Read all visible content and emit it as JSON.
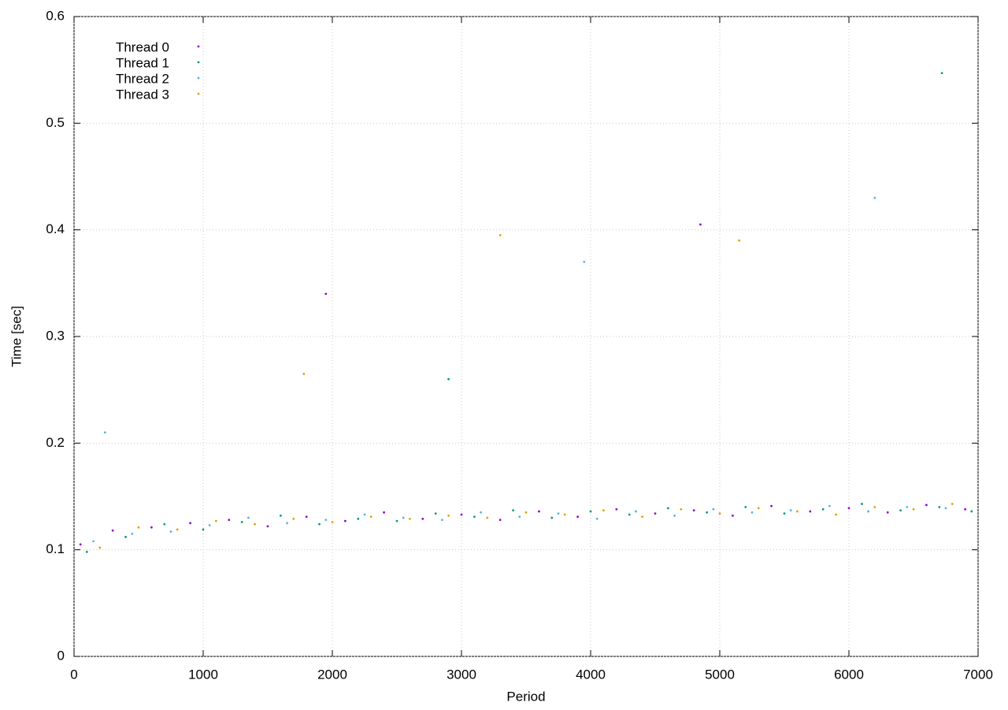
{
  "chart_data": {
    "type": "scatter",
    "x_label": "Period",
    "y_label": "Time [sec]",
    "xlim": [
      0,
      7000
    ],
    "xticks": [
      0,
      1000,
      2000,
      3000,
      4000,
      5000,
      6000,
      7000
    ],
    "ylim": [
      0,
      0.6
    ],
    "yticks": [
      0,
      0.1,
      0.2,
      0.3,
      0.4,
      0.5,
      0.6
    ],
    "grid": true,
    "legend": "upper left",
    "series": [
      {
        "name": "Thread 0",
        "color": "#9400d3",
        "x": [
          50,
          300,
          600,
          900,
          1200,
          1500,
          1800,
          2100,
          2400,
          2700,
          3000,
          3300,
          3600,
          3900,
          4200,
          4500,
          4800,
          5100,
          5400,
          5700,
          6000,
          6300,
          6600,
          6900,
          1950,
          4850
        ],
        "values": [
          0.105,
          0.118,
          0.121,
          0.125,
          0.128,
          0.122,
          0.131,
          0.127,
          0.135,
          0.129,
          0.133,
          0.128,
          0.136,
          0.131,
          0.138,
          0.134,
          0.137,
          0.132,
          0.141,
          0.136,
          0.139,
          0.135,
          0.142,
          0.138,
          0.34,
          0.405
        ]
      },
      {
        "name": "Thread 1",
        "color": "#009e73",
        "x": [
          100,
          400,
          700,
          1000,
          1300,
          1600,
          1900,
          2200,
          2500,
          2800,
          3100,
          3400,
          3700,
          4000,
          4300,
          4600,
          4900,
          5200,
          5500,
          5800,
          6100,
          6400,
          6700,
          6950,
          2900,
          6720
        ],
        "values": [
          0.098,
          0.112,
          0.124,
          0.119,
          0.126,
          0.132,
          0.124,
          0.129,
          0.127,
          0.134,
          0.131,
          0.137,
          0.13,
          0.136,
          0.133,
          0.139,
          0.135,
          0.14,
          0.134,
          0.138,
          0.143,
          0.137,
          0.14,
          0.136,
          0.26,
          0.547
        ]
      },
      {
        "name": "Thread 2",
        "color": "#56b4e9",
        "x": [
          150,
          450,
          750,
          1050,
          1350,
          1650,
          1950,
          2250,
          2550,
          2850,
          3150,
          3450,
          3750,
          4050,
          4350,
          4650,
          4950,
          5250,
          5550,
          5850,
          6150,
          6450,
          6750,
          240,
          3950,
          6200
        ],
        "values": [
          0.108,
          0.115,
          0.117,
          0.123,
          0.13,
          0.125,
          0.128,
          0.133,
          0.13,
          0.128,
          0.135,
          0.131,
          0.134,
          0.129,
          0.136,
          0.132,
          0.138,
          0.135,
          0.137,
          0.141,
          0.136,
          0.14,
          0.139,
          0.21,
          0.37,
          0.43
        ]
      },
      {
        "name": "Thread 3",
        "color": "#e69f00",
        "x": [
          200,
          500,
          800,
          1100,
          1400,
          1700,
          2000,
          2300,
          2600,
          2900,
          3200,
          3500,
          3800,
          4100,
          4400,
          4700,
          5000,
          5300,
          5600,
          5900,
          6200,
          6500,
          6800,
          1780,
          3300,
          5150
        ],
        "values": [
          0.102,
          0.121,
          0.119,
          0.127,
          0.124,
          0.129,
          0.126,
          0.131,
          0.129,
          0.132,
          0.13,
          0.135,
          0.133,
          0.137,
          0.131,
          0.138,
          0.134,
          0.139,
          0.136,
          0.133,
          0.14,
          0.138,
          0.143,
          0.265,
          0.395,
          0.39
        ]
      }
    ]
  }
}
